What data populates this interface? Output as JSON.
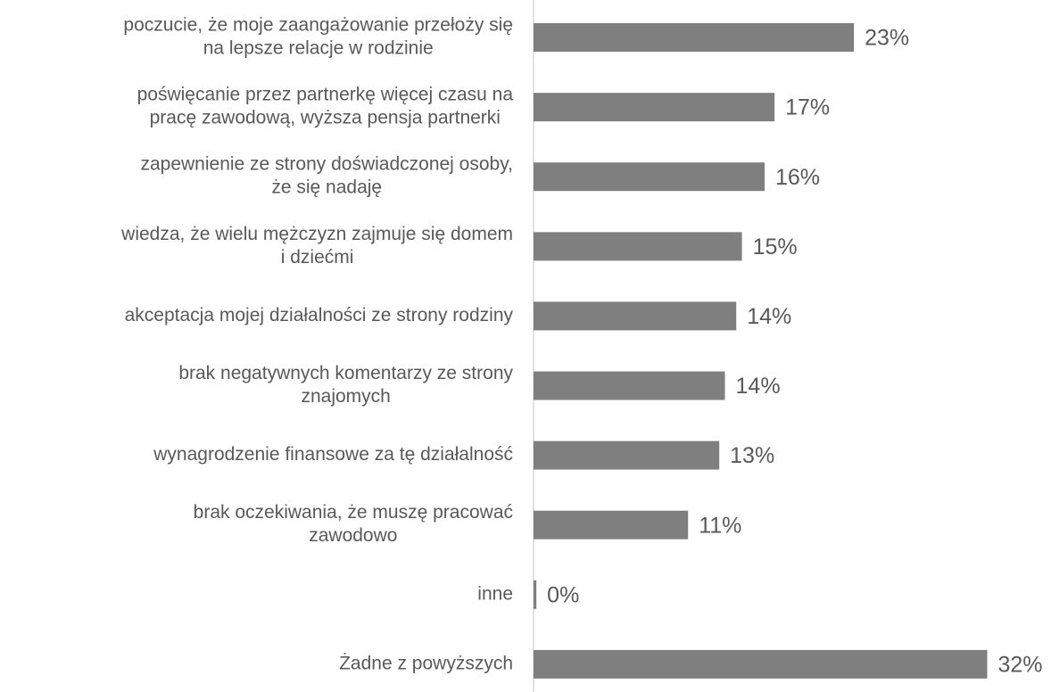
{
  "chart_data": {
    "type": "hbar",
    "categories": [
      [
        "poczucie, że moje zaangażowanie przełoży się",
        "na lepsze relacje w rodzinie"
      ],
      [
        "poświęcanie przez partnerkę więcej czasu na",
        "pracę zawodową, wyższa pensja partnerki"
      ],
      [
        "zapewnienie ze strony doświadczonej osoby,",
        "że się nadaję"
      ],
      [
        "wiedza, że wielu mężczyzn zajmuje się domem",
        "i dziećmi"
      ],
      [
        "akceptacja mojej działalności ze strony rodziny"
      ],
      [
        "brak negatywnych komentarzy ze strony",
        "znajomych"
      ],
      [
        "wynagrodzenie finansowe za tę działalność"
      ],
      [
        "brak oczekiwania, że muszę pracować",
        "zawodowo"
      ],
      [
        "inne"
      ],
      [
        "Żadne z powyższych"
      ]
    ],
    "values": [
      22.6,
      17.0,
      16.3,
      14.7,
      14.3,
      13.5,
      13.1,
      10.9,
      0.2,
      32.0
    ],
    "value_labels": [
      "23%",
      "17%",
      "16%",
      "15%",
      "14%",
      "14%",
      "13%",
      "11%",
      "0%",
      "32%"
    ],
    "color": "#7f7f7f",
    "xlim": [
      0,
      36.5
    ]
  }
}
